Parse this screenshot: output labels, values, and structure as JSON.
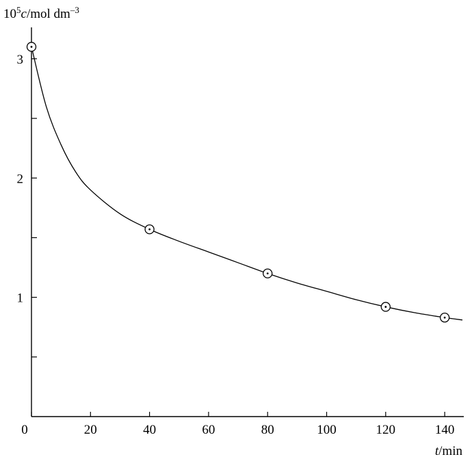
{
  "chart_data": {
    "type": "scatter",
    "title": "",
    "ylabel": {
      "prefix": "10",
      "exp": "5",
      "var": "c",
      "unit": "/mol dm",
      "unit_exp": "–3"
    },
    "xlabel": {
      "var": "t",
      "unit": "/min"
    },
    "xlim": [
      0,
      146
    ],
    "ylim": [
      0,
      3.2
    ],
    "x_ticks": [
      0,
      20,
      40,
      60,
      80,
      100,
      120,
      140
    ],
    "x_minor_ticks": [],
    "y_ticks": [
      1,
      2,
      3
    ],
    "y_minor_ticks": [
      0.5,
      1.5,
      2.5
    ],
    "grid": false,
    "series": [
      {
        "marker": "circled-dot",
        "points": [
          {
            "x": 0,
            "y": 3.1
          },
          {
            "x": 40,
            "y": 1.57
          },
          {
            "x": 80,
            "y": 1.2
          },
          {
            "x": 120,
            "y": 0.92
          },
          {
            "x": 140,
            "y": 0.83
          }
        ]
      }
    ],
    "fit_curve": {
      "style": "smooth solid line",
      "points": [
        {
          "x": 0,
          "y": 3.1
        },
        {
          "x": 5,
          "y": 2.6
        },
        {
          "x": 10,
          "y": 2.28
        },
        {
          "x": 15,
          "y": 2.05
        },
        {
          "x": 20,
          "y": 1.9
        },
        {
          "x": 30,
          "y": 1.7
        },
        {
          "x": 40,
          "y": 1.57
        },
        {
          "x": 50,
          "y": 1.47
        },
        {
          "x": 60,
          "y": 1.38
        },
        {
          "x": 70,
          "y": 1.29
        },
        {
          "x": 80,
          "y": 1.2
        },
        {
          "x": 90,
          "y": 1.12
        },
        {
          "x": 100,
          "y": 1.05
        },
        {
          "x": 110,
          "y": 0.98
        },
        {
          "x": 120,
          "y": 0.92
        },
        {
          "x": 130,
          "y": 0.87
        },
        {
          "x": 140,
          "y": 0.83
        },
        {
          "x": 146,
          "y": 0.81
        }
      ]
    }
  }
}
